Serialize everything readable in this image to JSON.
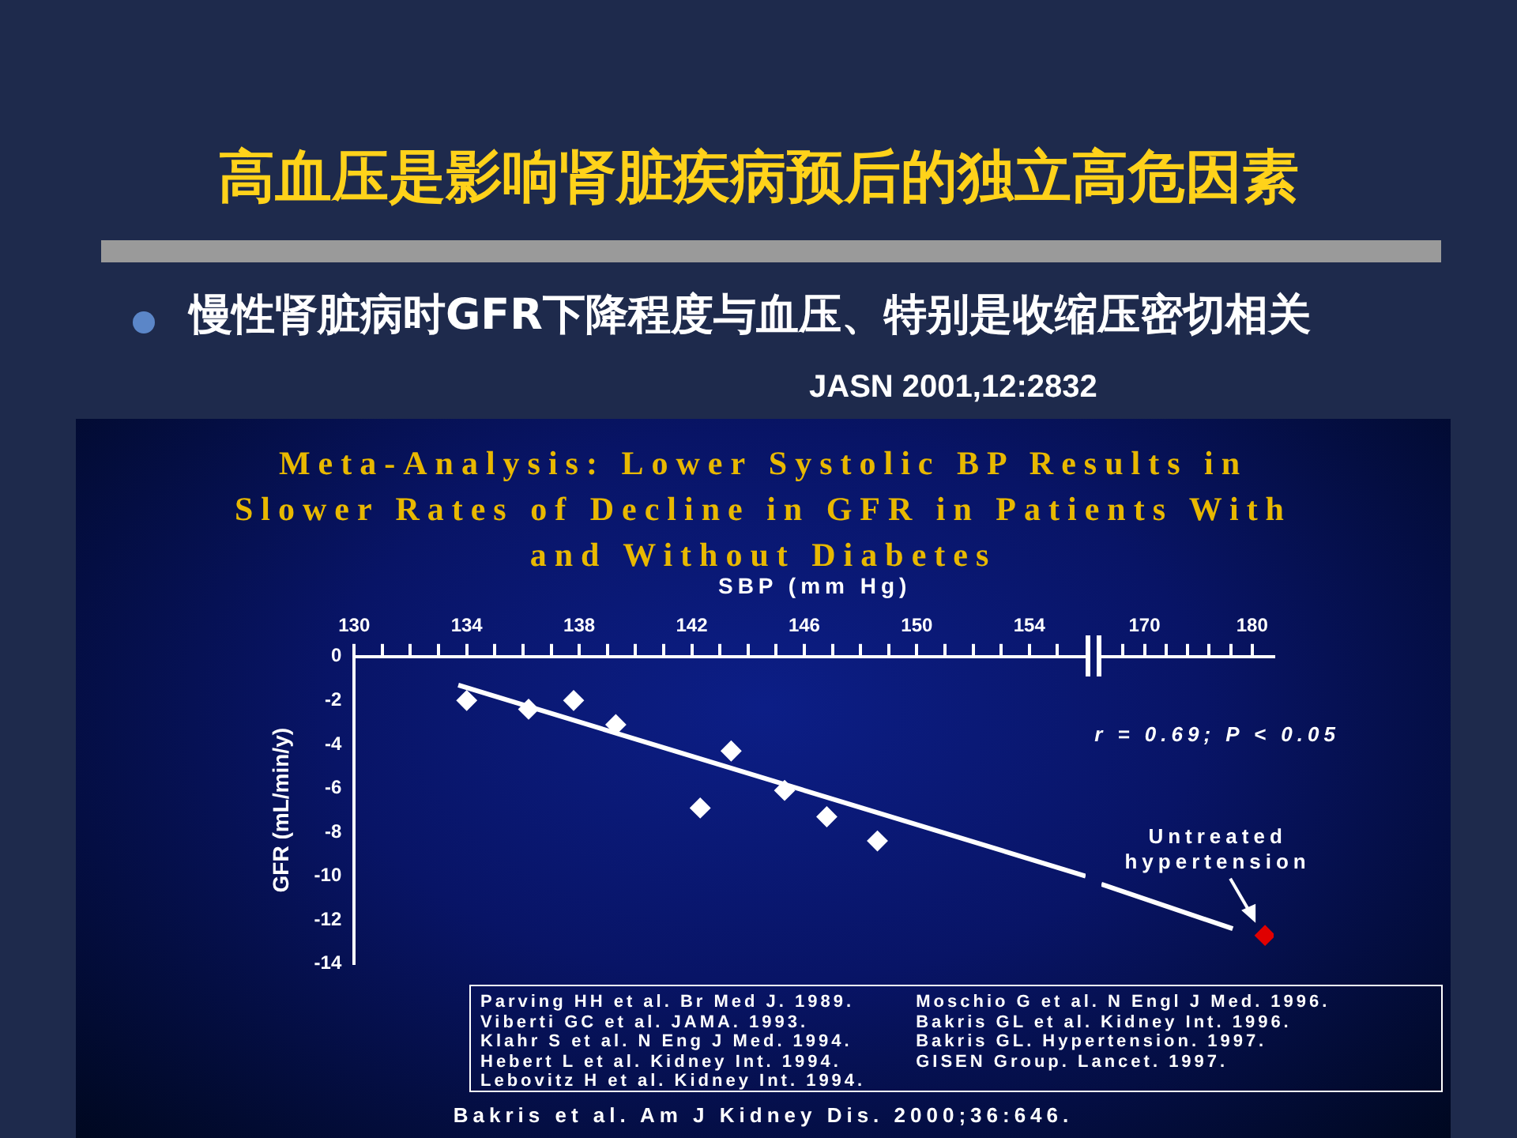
{
  "chart_data": [
    {
      "type": "scatter",
      "title": "高血压是影响肾脏疾病预后的独立高危因素",
      "subtitle": "慢性肾脏病时GFR下降程度与血压、特别是收缩压密切相关",
      "xlabel": "SBP (mm Hg)",
      "ylabel": "GFR (mL/min/y)",
      "xlim": [
        130,
        156
      ],
      "xticks": [
        130,
        {
          "value": 131,
          "label": null
        },
        {
          "value": 132,
          "label": null
        },
        {
          "value": 133,
          "label": null
        },
        134,
        {
          "value": 135,
          "label": null
        },
        {
          "value": 136,
          "label": null
        },
        {
          "value": 137,
          "label": null
        },
        138,
        {
          "value": 139,
          "label": null
        },
        {
          "value": 140,
          "label": null
        },
        {
          "value": 141,
          "label": null
        },
        142,
        {
          "value": 143,
          "label": null
        },
        {
          "value": 144,
          "label": null
        },
        {
          "value": 145,
          "label": null
        },
        146,
        {
          "value": 147,
          "label": null
        },
        {
          "value": 148,
          "label": null
        },
        {
          "value": 149,
          "label": null
        },
        150,
        {
          "value": 151,
          "label": null
        },
        {
          "value": 152,
          "label": null
        },
        {
          "value": 153,
          "label": null
        },
        154,
        {
          "value": 155,
          "label": null
        }
      ],
      "ylim": [
        -14,
        0
      ],
      "yticks": [
        0,
        -2,
        -4,
        -6,
        -8,
        -10,
        -12,
        -14
      ],
      "grid": false,
      "legend": false,
      "series": [
        {
          "type": "scatter",
          "color": "#ffffff",
          "marker": "diamond",
          "x": [
            134.0,
            136.2,
            137.8,
            139.3,
            143.4,
            142.3,
            145.3,
            146.8,
            148.6
          ],
          "values": [
            -2.0,
            -2.4,
            -2.0,
            -3.1,
            -4.3,
            -6.9,
            -6.1,
            -7.3,
            -8.4
          ]
        },
        {
          "type": "line",
          "color": "#ffffff",
          "marker": "none",
          "x": [
            133.7,
            156
          ],
          "values": [
            -1.3,
            -10.0
          ]
        }
      ],
      "annotations": [
        "JASN 2001,12:2832",
        "Meta-Analysis: Lower Systolic BP Results in Slower Rates of Decline in GFR in Patients With and Without Diabetes",
        "r = 0.69; P < 0.05",
        "Parving HH et al. Br Med J. 1989.",
        "Viberti GC et al. JAMA. 1993.",
        "Klahr S et al. N Eng J Med. 1994.",
        "Hebert L et al. Kidney Int. 1994.",
        "Lebovitz H et al. Kidney Int. 1994.",
        "Moschio G et al. N Engl J Med. 1996.",
        "Bakris GL et al. Kidney Int. 1996.",
        "Bakris GL. Hypertension. 1997.",
        "GISEN Group. Lancet. 1997.",
        "Bakris et al. Am J Kidney Dis. 2000;36:646."
      ]
    },
    {
      "type": "scatter",
      "tick_labels": "x",
      "xlim": [
        166,
        182
      ],
      "xticks": [
        {
          "value": 168,
          "label": null
        },
        170,
        {
          "value": 172,
          "label": null
        },
        {
          "value": 174,
          "label": null
        },
        {
          "value": 176,
          "label": null
        },
        {
          "value": 178,
          "label": null
        },
        180
      ],
      "ylim": [
        -14,
        0
      ],
      "grid": false,
      "legend": false,
      "series": [
        {
          "type": "scatter",
          "color": "#e00000",
          "marker": "diamond",
          "x": [
            181.2
          ],
          "values": [
            -12.5
          ]
        },
        {
          "type": "line",
          "color": "#ffffff",
          "marker": "none",
          "x": [
            166,
            178.2
          ],
          "values": [
            -10.2,
            -12.2
          ]
        }
      ],
      "annotations": [
        {
          "text": "Untreated hypertension",
          "x": 181.2,
          "y": -12.5
        }
      ]
    }
  ]
}
